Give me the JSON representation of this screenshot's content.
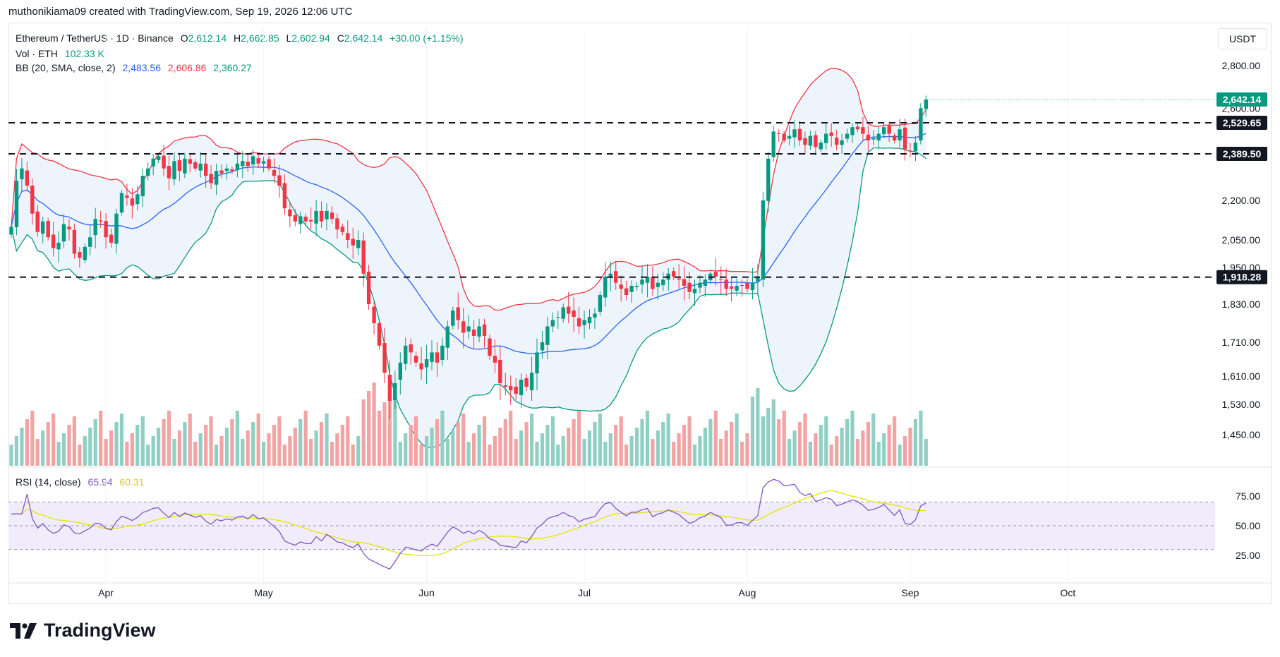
{
  "header": {
    "attribution": "muthonikiama09 created with TradingView.com, Sep 19, 2026 12:06 UTC"
  },
  "legend": {
    "symbol": "Ethereum / TetherUS · 1D · Binance",
    "open_label": "O",
    "open": "2,612.14",
    "high_label": "H",
    "high": "2,662.85",
    "low_label": "L",
    "low": "2,602.94",
    "close_label": "C",
    "close": "2,642.14",
    "change": "+30.00 (+1.15%)",
    "vol_label": "Vol · ETH",
    "vol": "102.33 K",
    "bb_label": "BB (20, SMA, close, 2)",
    "bb_basis": "2,483.56",
    "bb_upper": "2,606.86",
    "bb_lower": "2,360.27",
    "rsi_label": "RSI (14, close)",
    "rsi": "65.94",
    "rsi_ma": "60.31"
  },
  "currency": "USDT",
  "brand": "TradingView",
  "colors": {
    "up": "#089981",
    "down": "#f23645",
    "bb_basis": "#2962ff",
    "bb_upper": "#f23645",
    "bb_lower": "#089981",
    "bb_fill": "#eef4fc",
    "rsi": "#7e57c2",
    "rsi_ma": "#e3e600",
    "rsi_band": "#f1ecfb",
    "vol_up": "#8fcfc4",
    "vol_down": "#f3a3a3"
  },
  "chart_data": [
    {
      "type": "candlestick",
      "title": "Ethereum / TetherUS · 1D · Binance",
      "x_labels": [
        "Apr",
        "May",
        "Jun",
        "Jul",
        "Aug",
        "Sep",
        "Oct"
      ],
      "y_ticks": [
        1450,
        1530,
        1610,
        1710,
        1830,
        1950,
        2050,
        2200,
        2600,
        2800
      ],
      "y_tick_labels": [
        "1,450.00",
        "1,530.00",
        "1,610.00",
        "1,710.00",
        "1,830.00",
        "1,950.00",
        "2,050.00",
        "2,200.00",
        "2,600.00",
        "2,800.00"
      ],
      "horizontal_levels": [
        {
          "value": 2529.65,
          "label": "2,529.65"
        },
        {
          "value": 2389.5,
          "label": "2,389.50"
        },
        {
          "value": 1918.28,
          "label": "1,918.28"
        }
      ],
      "last_price": {
        "value": 2642.14,
        "label": "2,642.14"
      },
      "close": [
        2100,
        2280,
        2330,
        2260,
        2150,
        2080,
        2120,
        2060,
        2020,
        2040,
        2110,
        2090,
        2000,
        1985,
        2025,
        2060,
        2130,
        2120,
        2060,
        2040,
        2150,
        2230,
        2210,
        2180,
        2225,
        2300,
        2330,
        2370,
        2380,
        2330,
        2290,
        2360,
        2320,
        2370,
        2350,
        2330,
        2350,
        2300,
        2270,
        2320,
        2310,
        2330,
        2320,
        2350,
        2360,
        2340,
        2380,
        2350,
        2360,
        2330,
        2300,
        2260,
        2170,
        2140,
        2120,
        2140,
        2120,
        2120,
        2160,
        2120,
        2160,
        2130,
        2090,
        2080,
        2050,
        2030,
        2050,
        1930,
        1830,
        1770,
        1700,
        1620,
        1540,
        1590,
        1650,
        1700,
        1680,
        1650,
        1630,
        1660,
        1680,
        1650,
        1700,
        1760,
        1810,
        1780,
        1740,
        1760,
        1730,
        1760,
        1730,
        1670,
        1650,
        1590,
        1580,
        1570,
        1560,
        1600,
        1580,
        1620,
        1680,
        1710,
        1760,
        1780,
        1790,
        1820,
        1800,
        1790,
        1760,
        1780,
        1790,
        1800,
        1860,
        1920,
        1930,
        1900,
        1880,
        1860,
        1890,
        1890,
        1910,
        1920,
        1880,
        1900,
        1910,
        1930,
        1920,
        1910,
        1890,
        1870,
        1880,
        1900,
        1910,
        1930,
        1920,
        1910,
        1880,
        1880,
        1890,
        1890,
        1880,
        1900,
        1920,
        2200,
        2370,
        2490,
        2480,
        2450,
        2470,
        2500,
        2450,
        2430,
        2470,
        2420,
        2440,
        2480,
        2470,
        2430,
        2450,
        2480,
        2510,
        2500,
        2480,
        2450,
        2460,
        2480,
        2510,
        2480,
        2450,
        2500,
        2410,
        2400,
        2440,
        2600,
        2642.14
      ],
      "series": [
        {
          "name": "BB (20, SMA, close, 2)",
          "values_label": "basis / upper / lower",
          "last": [
            2483.56,
            2606.86,
            2360.27
          ]
        },
        {
          "name": "Vol · ETH",
          "last": "102.33 K"
        }
      ]
    },
    {
      "type": "line",
      "title": "RSI (14, close)",
      "y_ticks": [
        25,
        50,
        75
      ],
      "y_tick_labels": [
        "25.00",
        "50.00",
        "75.00"
      ],
      "band": [
        30,
        70
      ],
      "series": [
        {
          "name": "RSI (14, close)",
          "last": 65.94
        },
        {
          "name": "MA",
          "last": 60.31
        }
      ]
    }
  ]
}
